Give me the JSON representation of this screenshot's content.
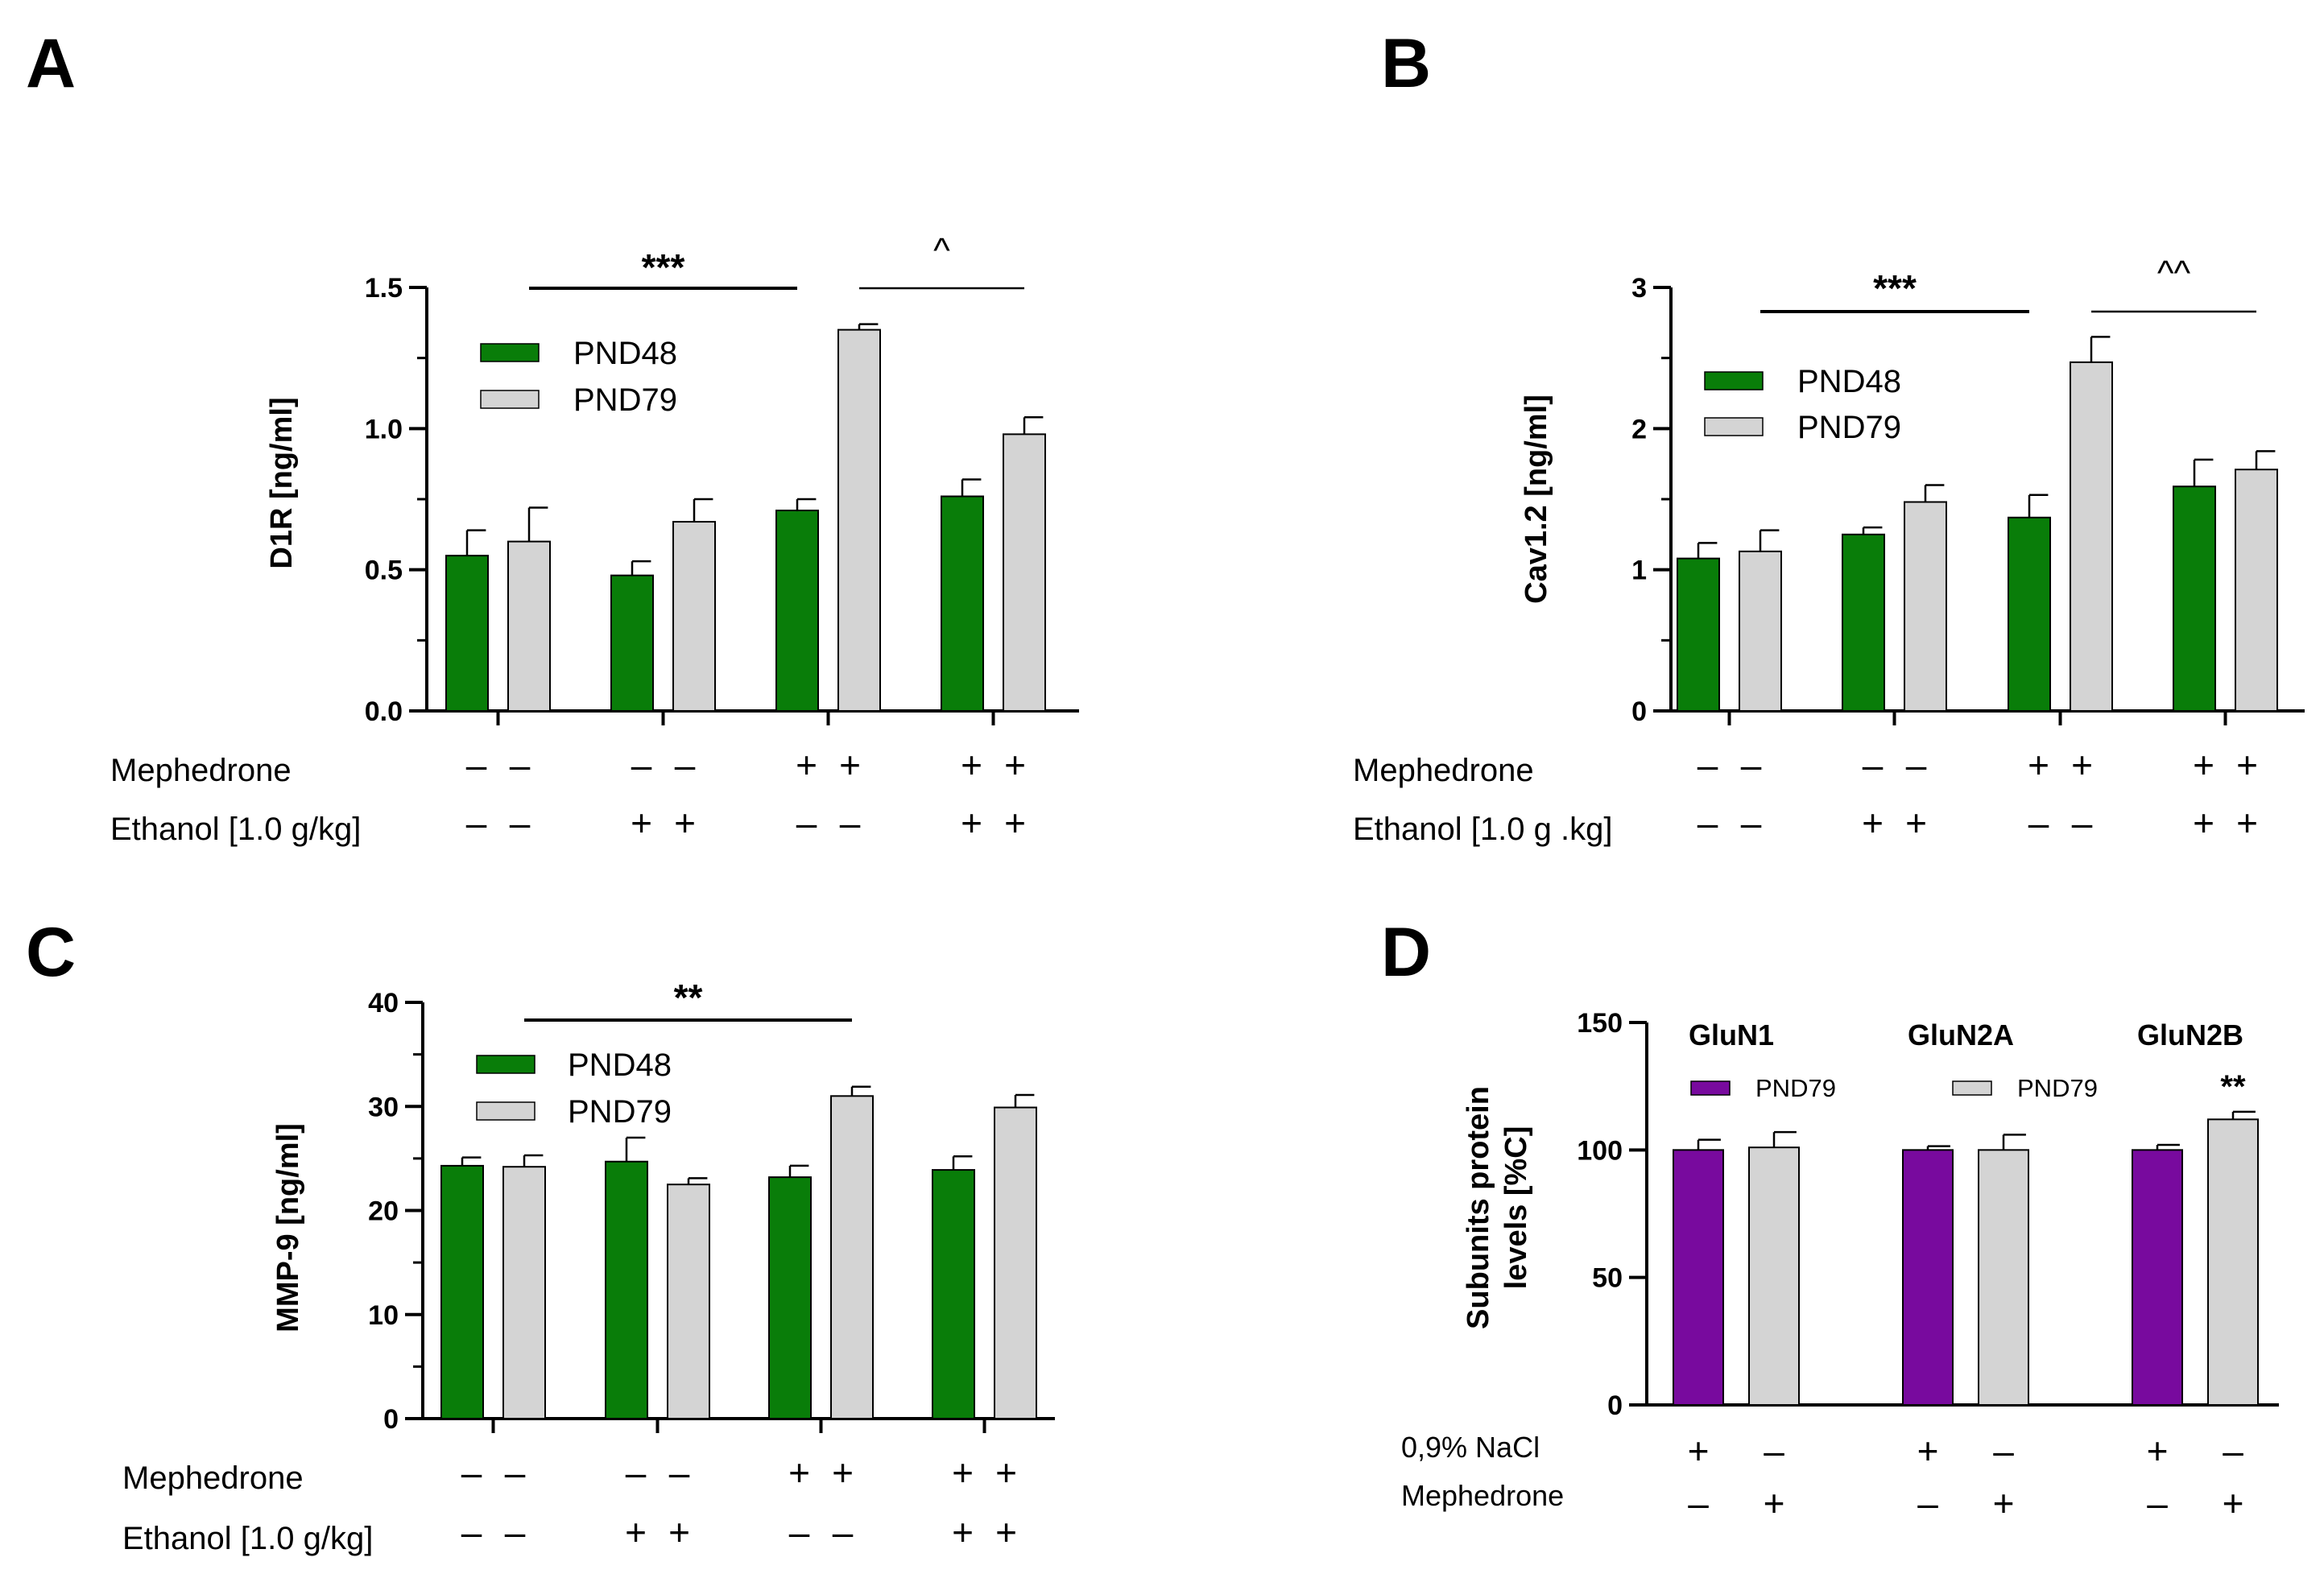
{
  "colors": {
    "green": "#097D09",
    "grey": "#D4D4D4",
    "purple": "#780A9E"
  },
  "chart_data": [
    {
      "id": "A",
      "panel": "A",
      "type": "bar",
      "ylabel": "D1R [ng/ml]",
      "ylim": [
        0,
        1.5
      ],
      "yticks": [
        "0.0",
        "0.5",
        "1.0",
        "1.5"
      ],
      "legend": [
        "PND48",
        "PND79"
      ],
      "groups": 4,
      "series": [
        {
          "name": "PND48",
          "color": "green",
          "values": [
            0.55,
            0.48,
            0.71,
            0.76
          ],
          "errors": [
            0.09,
            0.05,
            0.04,
            0.06
          ]
        },
        {
          "name": "PND79",
          "color": "grey",
          "values": [
            0.6,
            0.67,
            1.35,
            0.98
          ],
          "errors": [
            0.12,
            0.08,
            0.02,
            0.06
          ]
        }
      ],
      "row_labels": [
        "Mephedrone",
        "Ethanol [1.0 g/kg]"
      ],
      "rows": [
        [
          "-",
          "-",
          "-",
          "-",
          "+",
          "+",
          "+",
          "+"
        ],
        [
          "-",
          "-",
          "+",
          "+",
          "-",
          "-",
          "+",
          "+"
        ]
      ],
      "significance": [
        {
          "label": "***",
          "kind": "star",
          "from": [
            0,
            1
          ],
          "to": [
            2,
            0
          ]
        },
        {
          "label": "^",
          "kind": "caret",
          "from": [
            2,
            1
          ],
          "to": [
            3,
            1
          ]
        }
      ]
    },
    {
      "id": "B",
      "panel": "B",
      "type": "bar",
      "ylabel": "Cav1.2 [ng/ml]",
      "ylim": [
        0,
        3
      ],
      "yticks": [
        "0",
        "1",
        "2",
        "3"
      ],
      "legend": [
        "PND48",
        "PND79"
      ],
      "groups": 4,
      "series": [
        {
          "name": "PND48",
          "color": "green",
          "values": [
            1.08,
            1.25,
            1.37,
            1.59
          ],
          "errors": [
            0.11,
            0.05,
            0.16,
            0.19
          ]
        },
        {
          "name": "PND79",
          "color": "grey",
          "values": [
            1.13,
            1.48,
            2.47,
            1.71
          ],
          "errors": [
            0.15,
            0.12,
            0.18,
            0.13
          ]
        }
      ],
      "row_labels": [
        "Mephedrone",
        "Ethanol [1.0 g .kg]"
      ],
      "rows": [
        [
          "-",
          "-",
          "-",
          "-",
          "+",
          "+",
          "+",
          "+"
        ],
        [
          "-",
          "-",
          "+",
          "+",
          "-",
          "-",
          "+",
          "+"
        ]
      ],
      "significance": [
        {
          "label": "***",
          "kind": "star",
          "from": [
            0,
            1
          ],
          "to": [
            2,
            0
          ]
        },
        {
          "label": "^^",
          "kind": "caret",
          "from": [
            2,
            1
          ],
          "to": [
            3,
            1
          ]
        }
      ]
    },
    {
      "id": "C",
      "panel": "C",
      "type": "bar",
      "ylabel": "MMP-9 [ng/ml]",
      "ylim": [
        0,
        40
      ],
      "yticks": [
        "0",
        "10",
        "20",
        "30",
        "40"
      ],
      "legend": [
        "PND48",
        "PND79"
      ],
      "groups": 4,
      "series": [
        {
          "name": "PND48",
          "color": "green",
          "values": [
            24.3,
            24.7,
            23.2,
            23.9
          ],
          "errors": [
            0.8,
            2.3,
            1.1,
            1.3
          ]
        },
        {
          "name": "PND79",
          "color": "grey",
          "values": [
            24.2,
            22.5,
            31.0,
            29.9
          ],
          "errors": [
            1.1,
            0.6,
            0.9,
            1.2
          ]
        }
      ],
      "row_labels": [
        "Mephedrone",
        "Ethanol [1.0 g/kg]"
      ],
      "rows": [
        [
          "-",
          "-",
          "-",
          "-",
          "+",
          "+",
          "+",
          "+"
        ],
        [
          "-",
          "-",
          "+",
          "+",
          "-",
          "-",
          "+",
          "+"
        ]
      ],
      "significance": [
        {
          "label": "**",
          "kind": "star",
          "from": [
            0,
            1
          ],
          "to": [
            2,
            1
          ]
        }
      ]
    },
    {
      "id": "D",
      "panel": "D",
      "type": "bar",
      "ylabel": [
        "Subunits protein",
        "levels [%C]"
      ],
      "ylim": [
        0,
        150
      ],
      "yticks": [
        "0",
        "50",
        "100",
        "150"
      ],
      "legend": [
        "PND79",
        "PND79"
      ],
      "subtitles": [
        "GluN1",
        "GluN2A",
        "GluN2B"
      ],
      "groups": 3,
      "series": [
        {
          "name": "PND79",
          "color": "purple",
          "values": [
            100,
            100,
            100
          ],
          "errors": [
            4,
            1.5,
            2
          ]
        },
        {
          "name": "PND79",
          "color": "grey",
          "values": [
            101,
            100,
            112
          ],
          "errors": [
            6,
            6,
            3
          ]
        }
      ],
      "row_labels": [
        "0,9% NaCl",
        "Mephedrone"
      ],
      "rows": [
        [
          "+",
          "-",
          "+",
          "-",
          "+",
          "-"
        ],
        [
          "-",
          "+",
          "-",
          "+",
          "-",
          "+"
        ]
      ],
      "bar_annotations": [
        {
          "label": "**",
          "group": 2,
          "series": 1
        }
      ]
    }
  ]
}
